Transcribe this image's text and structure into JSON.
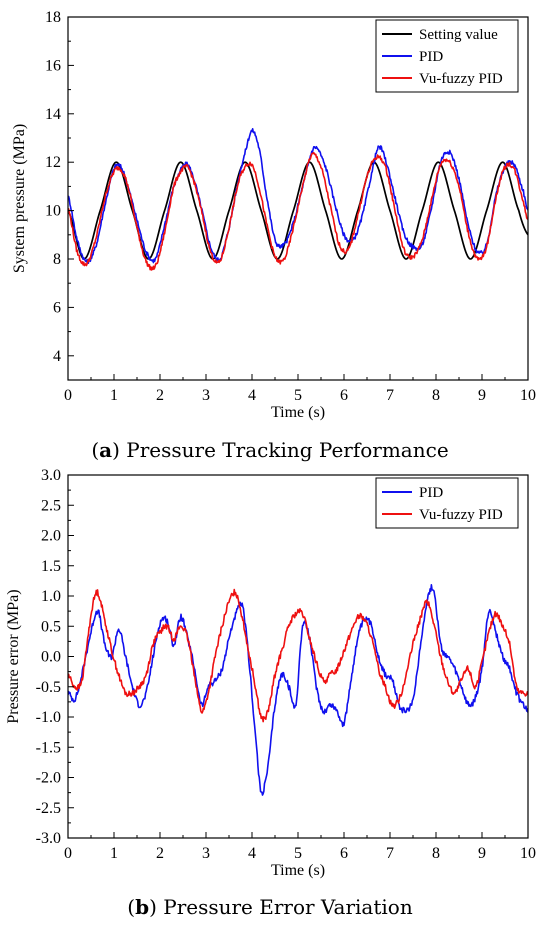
{
  "chart_data": [
    {
      "type": "line",
      "caption": {
        "prefix": "(",
        "letter": "a",
        "text": ") Pressure Tracking Performance"
      },
      "xlabel": "Time (s)",
      "ylabel": "System pressure (MPa)",
      "xlim": [
        0,
        10
      ],
      "ylim": [
        3,
        18
      ],
      "xticks": [
        "0",
        "1",
        "2",
        "3",
        "4",
        "5",
        "6",
        "7",
        "8",
        "9",
        "10"
      ],
      "yticks": [
        "4",
        "6",
        "8",
        "10",
        "12",
        "14",
        "16",
        "18"
      ],
      "grid": false,
      "legend_position": "top-right",
      "series": [
        {
          "name": "Setting value",
          "color": "#000000",
          "x": [
            0,
            0.35,
            0.7,
            1.05,
            1.4,
            1.75,
            2.1,
            2.45,
            2.8,
            3.15,
            3.5,
            3.85,
            4.2,
            4.55,
            4.9,
            5.25,
            5.6,
            5.95,
            6.3,
            6.65,
            7.0,
            7.35,
            7.7,
            8.05,
            8.4,
            8.75,
            9.1,
            9.45,
            9.8,
            10.0
          ],
          "y": [
            10.0,
            8.0,
            10.0,
            12.0,
            10.0,
            8.0,
            10.0,
            12.0,
            10.0,
            8.0,
            10.0,
            12.0,
            10.0,
            8.0,
            10.0,
            12.0,
            10.0,
            8.0,
            10.0,
            12.0,
            10.0,
            8.0,
            10.0,
            12.0,
            10.0,
            8.0,
            10.0,
            12.0,
            10.0,
            9.0
          ]
        },
        {
          "name": "PID",
          "color": "#1010ee",
          "x": [
            0,
            0.2,
            0.4,
            0.6,
            0.8,
            1.0,
            1.15,
            1.3,
            1.5,
            1.7,
            1.9,
            2.1,
            2.3,
            2.55,
            2.7,
            2.9,
            3.1,
            3.3,
            3.5,
            3.7,
            3.85,
            4.0,
            4.15,
            4.3,
            4.5,
            4.7,
            4.9,
            5.1,
            5.35,
            5.6,
            5.8,
            6.0,
            6.2,
            6.4,
            6.6,
            6.75,
            6.9,
            7.1,
            7.3,
            7.5,
            7.7,
            7.9,
            8.1,
            8.3,
            8.5,
            8.7,
            8.9,
            9.1,
            9.3,
            9.5,
            9.7,
            9.9,
            10.0
          ],
          "y": [
            10.6,
            8.8,
            7.9,
            8.5,
            10.2,
            11.7,
            11.8,
            11.0,
            9.6,
            8.3,
            8.0,
            9.4,
            11.0,
            11.9,
            11.5,
            10.1,
            8.5,
            8.0,
            9.3,
            11.2,
            12.4,
            13.3,
            12.6,
            10.8,
            8.8,
            8.6,
            9.5,
            11.0,
            12.6,
            11.8,
            10.3,
            9.0,
            8.8,
            9.8,
            11.5,
            12.6,
            12.1,
            10.6,
            9.1,
            8.5,
            8.6,
            10.1,
            12.0,
            12.4,
            11.3,
            9.4,
            8.3,
            8.6,
            10.6,
            11.8,
            11.9,
            10.8,
            10.0
          ]
        },
        {
          "name": "Vu-fuzzy PID",
          "color": "#ee1010",
          "x": [
            0,
            0.2,
            0.4,
            0.6,
            0.8,
            1.0,
            1.15,
            1.3,
            1.5,
            1.7,
            1.9,
            2.1,
            2.3,
            2.55,
            2.7,
            2.9,
            3.1,
            3.3,
            3.5,
            3.7,
            3.85,
            4.0,
            4.15,
            4.3,
            4.5,
            4.7,
            4.9,
            5.1,
            5.3,
            5.5,
            5.7,
            5.9,
            6.1,
            6.3,
            6.5,
            6.7,
            6.9,
            7.1,
            7.3,
            7.5,
            7.7,
            7.9,
            8.1,
            8.3,
            8.5,
            8.7,
            8.9,
            9.1,
            9.3,
            9.5,
            9.7,
            9.9,
            10.0
          ],
          "y": [
            10.1,
            8.3,
            7.8,
            8.8,
            10.5,
            11.6,
            11.7,
            11.0,
            9.3,
            7.9,
            7.7,
            9.1,
            11.0,
            11.8,
            11.4,
            10.0,
            8.3,
            7.9,
            9.3,
            11.1,
            11.8,
            11.9,
            11.0,
            9.6,
            8.1,
            8.0,
            9.3,
            11.0,
            12.3,
            11.8,
            10.2,
            8.6,
            8.4,
            9.8,
            11.4,
            12.2,
            11.8,
            10.1,
            8.4,
            8.1,
            8.8,
            10.4,
            11.9,
            12.0,
            11.0,
            9.1,
            8.0,
            8.5,
            10.5,
            11.8,
            11.7,
            10.4,
            9.6
          ]
        }
      ]
    },
    {
      "type": "line",
      "caption": {
        "prefix": "(",
        "letter": "b",
        "text": ") Pressure Error Variation"
      },
      "xlabel": "Time (s)",
      "ylabel": "Pressure error (MPa)",
      "xlim": [
        0,
        10
      ],
      "ylim": [
        -3.0,
        3.0
      ],
      "xticks": [
        "0",
        "1",
        "2",
        "3",
        "4",
        "5",
        "6",
        "7",
        "8",
        "9",
        "10"
      ],
      "yticks": [
        "-3.0",
        "-2.5",
        "-2.0",
        "-1.5",
        "-1.0",
        "-0.5",
        "0.0",
        "0.5",
        "1.0",
        "1.5",
        "2.0",
        "2.5",
        "3.0"
      ],
      "grid": false,
      "legend_position": "top-right",
      "series": [
        {
          "name": "PID",
          "color": "#1010ee",
          "x": [
            0,
            0.15,
            0.3,
            0.5,
            0.65,
            0.8,
            0.95,
            1.1,
            1.25,
            1.4,
            1.55,
            1.7,
            1.85,
            2.0,
            2.15,
            2.3,
            2.45,
            2.6,
            2.75,
            2.9,
            3.05,
            3.2,
            3.35,
            3.5,
            3.65,
            3.8,
            3.95,
            4.1,
            4.2,
            4.35,
            4.5,
            4.65,
            4.8,
            4.95,
            5.1,
            5.25,
            5.4,
            5.55,
            5.7,
            5.85,
            6.0,
            6.15,
            6.3,
            6.45,
            6.6,
            6.75,
            6.9,
            7.05,
            7.2,
            7.35,
            7.5,
            7.65,
            7.8,
            7.95,
            8.1,
            8.25,
            8.4,
            8.55,
            8.7,
            8.85,
            9.0,
            9.15,
            9.3,
            9.45,
            9.6,
            9.75,
            9.9,
            10.0
          ],
          "y": [
            -0.6,
            -0.7,
            -0.3,
            0.4,
            0.75,
            0.2,
            0.0,
            0.45,
            0.0,
            -0.5,
            -0.8,
            -0.6,
            0.0,
            0.55,
            0.6,
            0.2,
            0.65,
            0.3,
            -0.2,
            -0.8,
            -0.5,
            -0.4,
            -0.2,
            0.3,
            0.7,
            0.8,
            -0.2,
            -1.5,
            -2.25,
            -1.8,
            -0.8,
            -0.3,
            -0.5,
            -0.8,
            0.5,
            0.3,
            -0.5,
            -0.9,
            -0.8,
            -0.9,
            -1.1,
            -0.4,
            0.3,
            0.6,
            0.5,
            0.0,
            -0.3,
            -0.4,
            -0.8,
            -0.9,
            -0.7,
            0.1,
            0.9,
            1.1,
            0.2,
            0.0,
            -0.2,
            -0.5,
            -0.8,
            -0.7,
            -0.2,
            0.75,
            0.4,
            0.0,
            -0.2,
            -0.6,
            -0.8,
            -0.9
          ]
        },
        {
          "name": "Vu-fuzzy PID",
          "color": "#ee1010",
          "x": [
            0,
            0.15,
            0.3,
            0.45,
            0.55,
            0.65,
            0.8,
            0.95,
            1.1,
            1.25,
            1.4,
            1.55,
            1.7,
            1.85,
            2.0,
            2.15,
            2.3,
            2.45,
            2.6,
            2.75,
            2.9,
            3.05,
            3.2,
            3.35,
            3.5,
            3.65,
            3.8,
            3.95,
            4.05,
            4.2,
            4.35,
            4.5,
            4.65,
            4.8,
            4.95,
            5.1,
            5.25,
            5.4,
            5.55,
            5.7,
            5.85,
            6.0,
            6.15,
            6.3,
            6.45,
            6.6,
            6.75,
            6.9,
            7.05,
            7.2,
            7.35,
            7.5,
            7.65,
            7.8,
            7.95,
            8.1,
            8.25,
            8.4,
            8.55,
            8.7,
            8.85,
            9.0,
            9.15,
            9.3,
            9.45,
            9.6,
            9.75,
            9.9,
            10.0
          ],
          "y": [
            -0.3,
            -0.5,
            -0.4,
            0.4,
            0.9,
            1.05,
            0.6,
            0.1,
            -0.3,
            -0.6,
            -0.6,
            -0.5,
            -0.3,
            0.2,
            0.4,
            0.5,
            0.3,
            0.5,
            0.3,
            -0.3,
            -0.9,
            -0.6,
            0.0,
            0.5,
            0.9,
            1.05,
            0.6,
            0.0,
            -0.4,
            -1.0,
            -0.9,
            -0.3,
            0.1,
            0.5,
            0.7,
            0.7,
            0.3,
            -0.1,
            -0.4,
            -0.3,
            -0.2,
            0.1,
            0.4,
            0.65,
            0.6,
            0.3,
            -0.2,
            -0.5,
            -0.8,
            -0.7,
            -0.3,
            0.2,
            0.6,
            0.9,
            0.55,
            0.0,
            -0.4,
            -0.6,
            -0.4,
            -0.2,
            -0.5,
            -0.1,
            0.4,
            0.7,
            0.5,
            0.2,
            -0.5,
            -0.6,
            -0.6
          ]
        }
      ]
    }
  ]
}
